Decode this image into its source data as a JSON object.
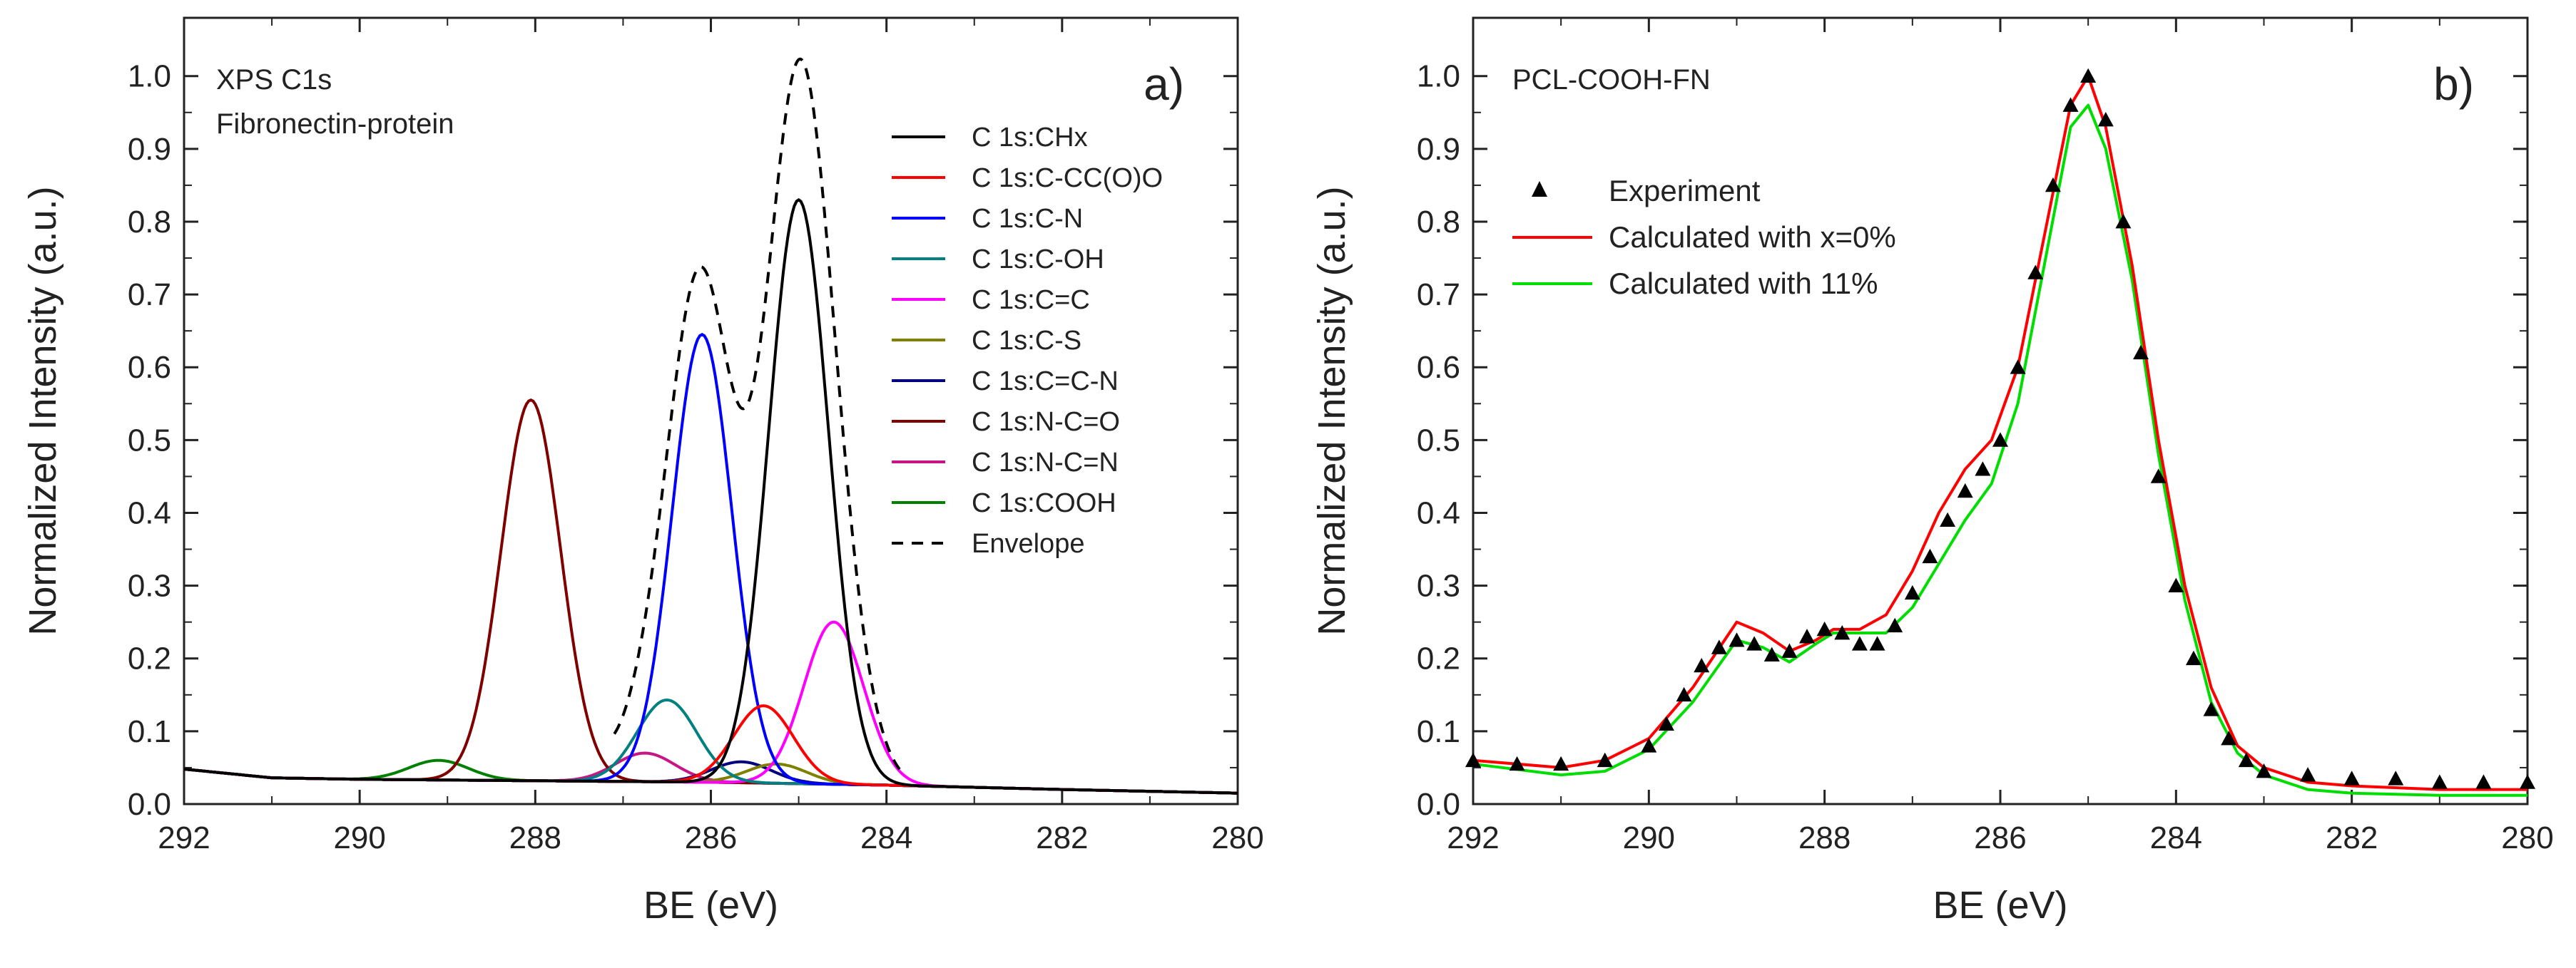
{
  "chart_data": [
    {
      "type": "line",
      "panel_label": "a)",
      "title": "",
      "annotations": [
        "XPS C1s",
        "Fibronectin-protein"
      ],
      "xlabel": "BE (eV)",
      "ylabel": "Normalized Intensity (a.u.)",
      "xlim": [
        292,
        280
      ],
      "ylim": [
        0,
        1.08
      ],
      "x_ticks": [
        292,
        290,
        288,
        286,
        284,
        282,
        280
      ],
      "y_ticks": [
        0.0,
        0.1,
        0.2,
        0.3,
        0.4,
        0.5,
        0.6,
        0.7,
        0.8,
        0.9,
        1.0
      ],
      "x_tick_labels": [
        "292",
        "290",
        "288",
        "286",
        "284",
        "282",
        "280"
      ],
      "y_tick_labels": [
        "0.0",
        "0.1",
        "0.2",
        "0.3",
        "0.4",
        "0.5",
        "0.6",
        "0.7",
        "0.8",
        "0.9",
        "1.0"
      ],
      "baseline": {
        "x": [
          292,
          291,
          290,
          288,
          286,
          284,
          282,
          280
        ],
        "y": [
          0.048,
          0.036,
          0.034,
          0.032,
          0.03,
          0.026,
          0.02,
          0.015
        ]
      },
      "legend_position": "top-right",
      "series": [
        {
          "name": "C 1s:CHx",
          "color": "#000000",
          "dash": "solid",
          "peak_center": 285.0,
          "peak_height": 0.83,
          "fwhm": 0.8
        },
        {
          "name": "C 1s:C-CC(O)O",
          "color": "#ff0000",
          "dash": "solid",
          "peak_center": 285.4,
          "peak_height": 0.135,
          "fwhm": 0.8
        },
        {
          "name": "C 1s:C-N",
          "color": "#0000ff",
          "dash": "solid",
          "peak_center": 286.1,
          "peak_height": 0.645,
          "fwhm": 0.8
        },
        {
          "name": "C 1s:C-OH",
          "color": "#008080",
          "dash": "solid",
          "peak_center": 286.5,
          "peak_height": 0.143,
          "fwhm": 0.8
        },
        {
          "name": "C 1s:C=C",
          "color": "#ff00ff",
          "dash": "solid",
          "peak_center": 284.6,
          "peak_height": 0.25,
          "fwhm": 0.8
        },
        {
          "name": "C 1s:C-S",
          "color": "#808000",
          "dash": "solid",
          "peak_center": 285.25,
          "peak_height": 0.055,
          "fwhm": 0.8
        },
        {
          "name": "C 1s:C=C-N",
          "color": "#000080",
          "dash": "solid",
          "peak_center": 285.65,
          "peak_height": 0.058,
          "fwhm": 0.8
        },
        {
          "name": "C 1s:N-C=O",
          "color": "#800000",
          "dash": "solid",
          "peak_center": 288.05,
          "peak_height": 0.555,
          "fwhm": 0.8
        },
        {
          "name": "C 1s:N-C=N",
          "color": "#c71585",
          "dash": "solid",
          "peak_center": 286.75,
          "peak_height": 0.07,
          "fwhm": 0.8
        },
        {
          "name": "C 1s:COOH",
          "color": "#008000",
          "dash": "solid",
          "peak_center": 289.1,
          "peak_height": 0.06,
          "fwhm": 0.8
        },
        {
          "name": "Envelope",
          "color": "#000000",
          "dash": "dashed",
          "peak_center": null,
          "peak_height": 0.99,
          "fwhm": null
        }
      ]
    },
    {
      "type": "line",
      "panel_label": "b)",
      "title": "",
      "annotations": [
        "PCL-COOH-FN"
      ],
      "xlabel": "BE (eV)",
      "ylabel": "Normalized Intensity (a.u.)",
      "xlim": [
        292,
        280
      ],
      "ylim": [
        0,
        1.08
      ],
      "x_ticks": [
        292,
        290,
        288,
        286,
        284,
        282,
        280
      ],
      "y_ticks": [
        0.0,
        0.1,
        0.2,
        0.3,
        0.4,
        0.5,
        0.6,
        0.7,
        0.8,
        0.9,
        1.0
      ],
      "x_tick_labels": [
        "292",
        "290",
        "288",
        "286",
        "284",
        "282",
        "280"
      ],
      "y_tick_labels": [
        "0.0",
        "0.1",
        "0.2",
        "0.3",
        "0.4",
        "0.5",
        "0.6",
        "0.7",
        "0.8",
        "0.9",
        "1.0"
      ],
      "legend_position": "top-left",
      "series": [
        {
          "name": "Experiment",
          "color": "#000000",
          "marker": "triangle",
          "x": [
            292.0,
            291.5,
            291.0,
            290.5,
            290.0,
            289.8,
            289.6,
            289.4,
            289.2,
            289.0,
            288.8,
            288.6,
            288.4,
            288.2,
            288.0,
            287.8,
            287.6,
            287.4,
            287.2,
            287.0,
            286.8,
            286.6,
            286.4,
            286.2,
            286.0,
            285.8,
            285.6,
            285.4,
            285.2,
            285.0,
            284.8,
            284.6,
            284.4,
            284.2,
            284.0,
            283.8,
            283.6,
            283.4,
            283.2,
            283.0,
            282.5,
            282.0,
            281.5,
            281.0,
            280.5,
            280.0
          ],
          "y": [
            0.06,
            0.055,
            0.055,
            0.06,
            0.08,
            0.11,
            0.15,
            0.19,
            0.215,
            0.225,
            0.22,
            0.205,
            0.21,
            0.23,
            0.24,
            0.235,
            0.22,
            0.22,
            0.245,
            0.29,
            0.34,
            0.39,
            0.43,
            0.46,
            0.5,
            0.6,
            0.73,
            0.85,
            0.96,
            1.0,
            0.94,
            0.8,
            0.62,
            0.45,
            0.3,
            0.2,
            0.13,
            0.09,
            0.06,
            0.045,
            0.04,
            0.035,
            0.035,
            0.03,
            0.03,
            0.03
          ]
        },
        {
          "name": "Calculated with x=0%",
          "color": "#ff0000",
          "line": "solid",
          "x": [
            292.0,
            291.0,
            290.5,
            290.0,
            289.5,
            289.0,
            288.7,
            288.4,
            288.1,
            287.9,
            287.6,
            287.3,
            287.0,
            286.7,
            286.4,
            286.1,
            285.8,
            285.5,
            285.2,
            285.0,
            284.8,
            284.5,
            284.2,
            283.9,
            283.6,
            283.3,
            283.0,
            282.5,
            282.0,
            281.0,
            280.0
          ],
          "y": [
            0.06,
            0.05,
            0.06,
            0.09,
            0.16,
            0.25,
            0.235,
            0.21,
            0.225,
            0.24,
            0.24,
            0.26,
            0.32,
            0.4,
            0.46,
            0.5,
            0.6,
            0.78,
            0.96,
            1.0,
            0.93,
            0.74,
            0.5,
            0.3,
            0.16,
            0.08,
            0.05,
            0.03,
            0.025,
            0.02,
            0.02
          ]
        },
        {
          "name": "Calculated with 11%",
          "color": "#00dd00",
          "line": "solid",
          "x": [
            292.0,
            291.0,
            290.5,
            290.0,
            289.5,
            289.0,
            288.7,
            288.4,
            288.1,
            287.9,
            287.6,
            287.3,
            287.0,
            286.7,
            286.4,
            286.1,
            285.8,
            285.5,
            285.2,
            285.0,
            284.8,
            284.5,
            284.2,
            283.9,
            283.6,
            283.3,
            283.0,
            282.5,
            282.0,
            281.0,
            280.0
          ],
          "y": [
            0.055,
            0.04,
            0.045,
            0.075,
            0.14,
            0.225,
            0.215,
            0.195,
            0.22,
            0.235,
            0.235,
            0.235,
            0.27,
            0.33,
            0.39,
            0.44,
            0.55,
            0.74,
            0.93,
            0.96,
            0.9,
            0.72,
            0.48,
            0.28,
            0.14,
            0.07,
            0.04,
            0.02,
            0.015,
            0.012,
            0.012
          ]
        }
      ]
    }
  ]
}
